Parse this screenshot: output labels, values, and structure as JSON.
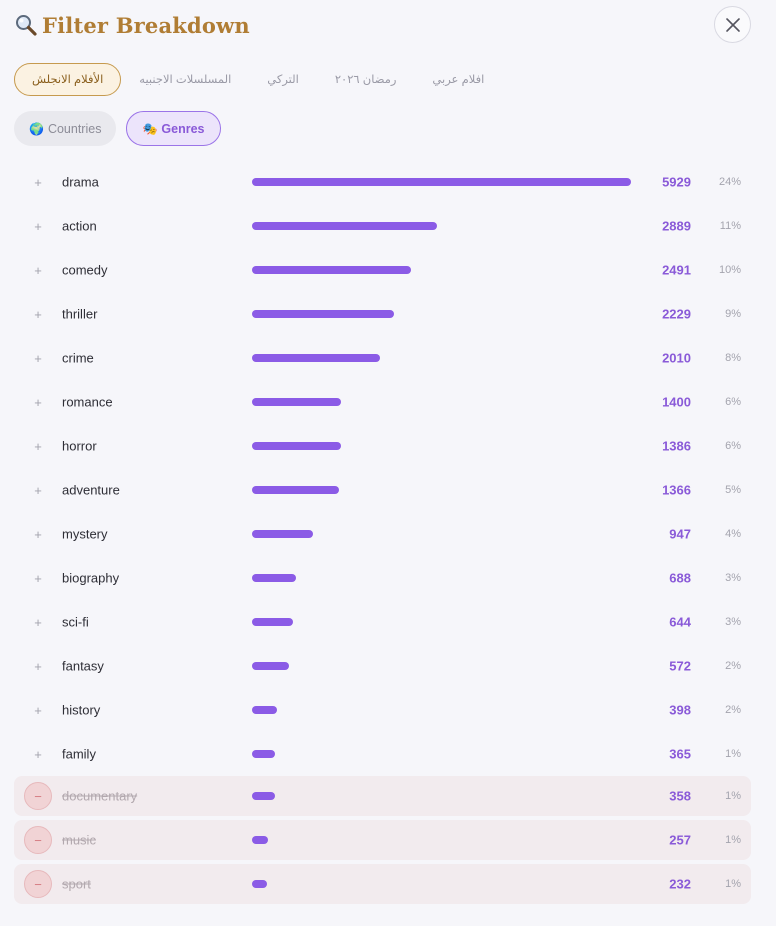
{
  "header": {
    "title": "Filter Breakdown",
    "icon": "magnifier-icon"
  },
  "tabs": [
    {
      "label": "الأفلام الانجلش",
      "active": true
    },
    {
      "label": "المسلسلات الاجنبيه",
      "active": false
    },
    {
      "label": "التركي",
      "active": false
    },
    {
      "label": "رمضان ٢٠٢٦",
      "active": false
    },
    {
      "label": "افلام عربي",
      "active": false
    }
  ],
  "pills": {
    "countries": {
      "emoji": "🌍",
      "label": "Countries"
    },
    "genres": {
      "emoji": "🎭",
      "label": "Genres",
      "active": true
    }
  },
  "colors": {
    "accent": "#8b5be6",
    "title": "#b07d34",
    "excluded_bg": "#f2ebee"
  },
  "max_count": 5929,
  "genres": [
    {
      "name": "drama",
      "count": "5929",
      "pct": "24%",
      "excluded": false
    },
    {
      "name": "action",
      "count": "2889",
      "pct": "11%",
      "excluded": false
    },
    {
      "name": "comedy",
      "count": "2491",
      "pct": "10%",
      "excluded": false
    },
    {
      "name": "thriller",
      "count": "2229",
      "pct": "9%",
      "excluded": false
    },
    {
      "name": "crime",
      "count": "2010",
      "pct": "8%",
      "excluded": false
    },
    {
      "name": "romance",
      "count": "1400",
      "pct": "6%",
      "excluded": false
    },
    {
      "name": "horror",
      "count": "1386",
      "pct": "6%",
      "excluded": false
    },
    {
      "name": "adventure",
      "count": "1366",
      "pct": "5%",
      "excluded": false
    },
    {
      "name": "mystery",
      "count": "947",
      "pct": "4%",
      "excluded": false
    },
    {
      "name": "biography",
      "count": "688",
      "pct": "3%",
      "excluded": false
    },
    {
      "name": "sci-fi",
      "count": "644",
      "pct": "3%",
      "excluded": false
    },
    {
      "name": "fantasy",
      "count": "572",
      "pct": "2%",
      "excluded": false
    },
    {
      "name": "history",
      "count": "398",
      "pct": "2%",
      "excluded": false
    },
    {
      "name": "family",
      "count": "365",
      "pct": "1%",
      "excluded": false
    },
    {
      "name": "documentary",
      "count": "358",
      "pct": "1%",
      "excluded": true
    },
    {
      "name": "music",
      "count": "257",
      "pct": "1%",
      "excluded": true
    },
    {
      "name": "sport",
      "count": "232",
      "pct": "1%",
      "excluded": true
    }
  ],
  "toggle_symbols": {
    "include": "+",
    "exclude": "−"
  }
}
